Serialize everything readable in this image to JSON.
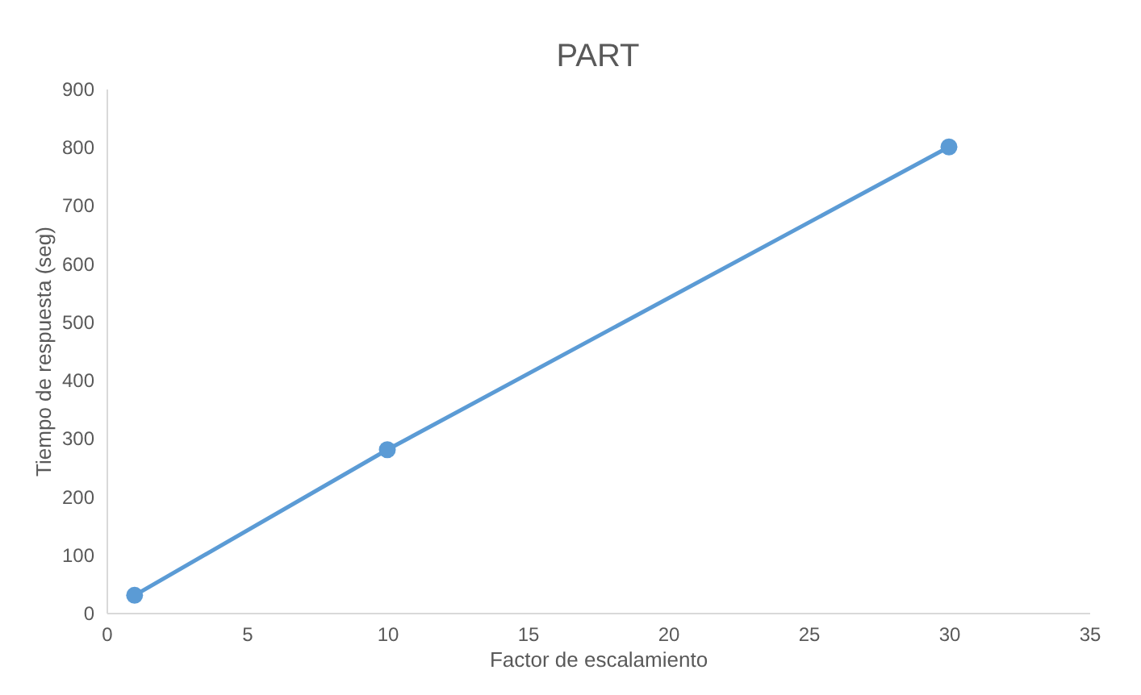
{
  "chart_data": {
    "type": "line",
    "title": "PART",
    "xlabel": "Factor de escalamiento",
    "ylabel": "Tiempo de respuesta (seg)",
    "x": [
      1,
      10,
      30
    ],
    "series": [
      {
        "color": "#5b9bd5",
        "values": [
          30,
          280,
          800
        ]
      }
    ],
    "xlim": [
      0,
      35
    ],
    "xticks": [
      0,
      5,
      10,
      15,
      20,
      25,
      30,
      35
    ],
    "ylim": [
      0,
      900
    ],
    "yticks": [
      0,
      100,
      200,
      300,
      400,
      500,
      600,
      700,
      800,
      900
    ],
    "grid": false,
    "legend": false,
    "marker": "circle",
    "line_style": "solid"
  }
}
